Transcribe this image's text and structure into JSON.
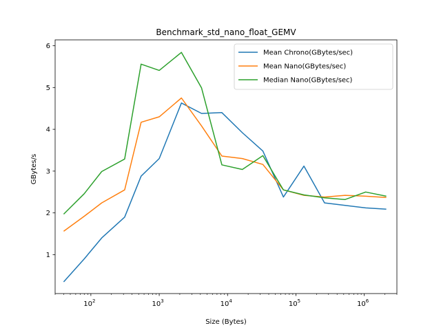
{
  "chart_data": {
    "type": "line",
    "title": "Benchmark_std_nano_float_GEMV",
    "xlabel": "Size (Bytes)",
    "ylabel": "GBytes/s",
    "xscale": "log",
    "xlim": [
      30,
      3000000
    ],
    "ylim": [
      0.07,
      6.14
    ],
    "x_ticks": [
      {
        "value": 100,
        "base": "10",
        "exp": "2"
      },
      {
        "value": 1000,
        "base": "10",
        "exp": "3"
      },
      {
        "value": 10000,
        "base": "10",
        "exp": "4"
      },
      {
        "value": 100000,
        "base": "10",
        "exp": "5"
      },
      {
        "value": 1000000,
        "base": "10",
        "exp": "6"
      }
    ],
    "y_ticks": [
      1,
      2,
      3,
      4,
      5,
      6
    ],
    "grid": false,
    "legend_position": "top-right",
    "x": [
      40,
      80,
      144,
      312,
      544,
      1000,
      2112,
      4160,
      8256,
      16448,
      32832,
      65600,
      131136,
      262208,
      524352,
      1048640,
      2097216
    ],
    "series": [
      {
        "name": "Mean Chrono(GBytes/sec)",
        "color": "#1f77b4",
        "values": [
          0.35,
          0.9,
          1.4,
          1.9,
          2.88,
          3.3,
          4.63,
          4.38,
          4.4,
          3.92,
          3.48,
          2.38,
          3.12,
          2.24,
          2.18,
          2.12,
          2.09
        ]
      },
      {
        "name": "Mean Nano(GBytes/sec)",
        "color": "#ff7f0e",
        "values": [
          1.56,
          1.92,
          2.24,
          2.55,
          4.17,
          4.3,
          4.75,
          4.08,
          3.36,
          3.3,
          3.16,
          2.55,
          2.42,
          2.38,
          2.42,
          2.4,
          2.37
        ]
      },
      {
        "name": "Median Nano(GBytes/sec)",
        "color": "#2ca02c",
        "values": [
          1.97,
          2.46,
          2.99,
          3.29,
          5.56,
          5.41,
          5.84,
          4.99,
          3.15,
          3.04,
          3.37,
          2.55,
          2.43,
          2.36,
          2.32,
          2.5,
          2.4
        ]
      }
    ]
  }
}
